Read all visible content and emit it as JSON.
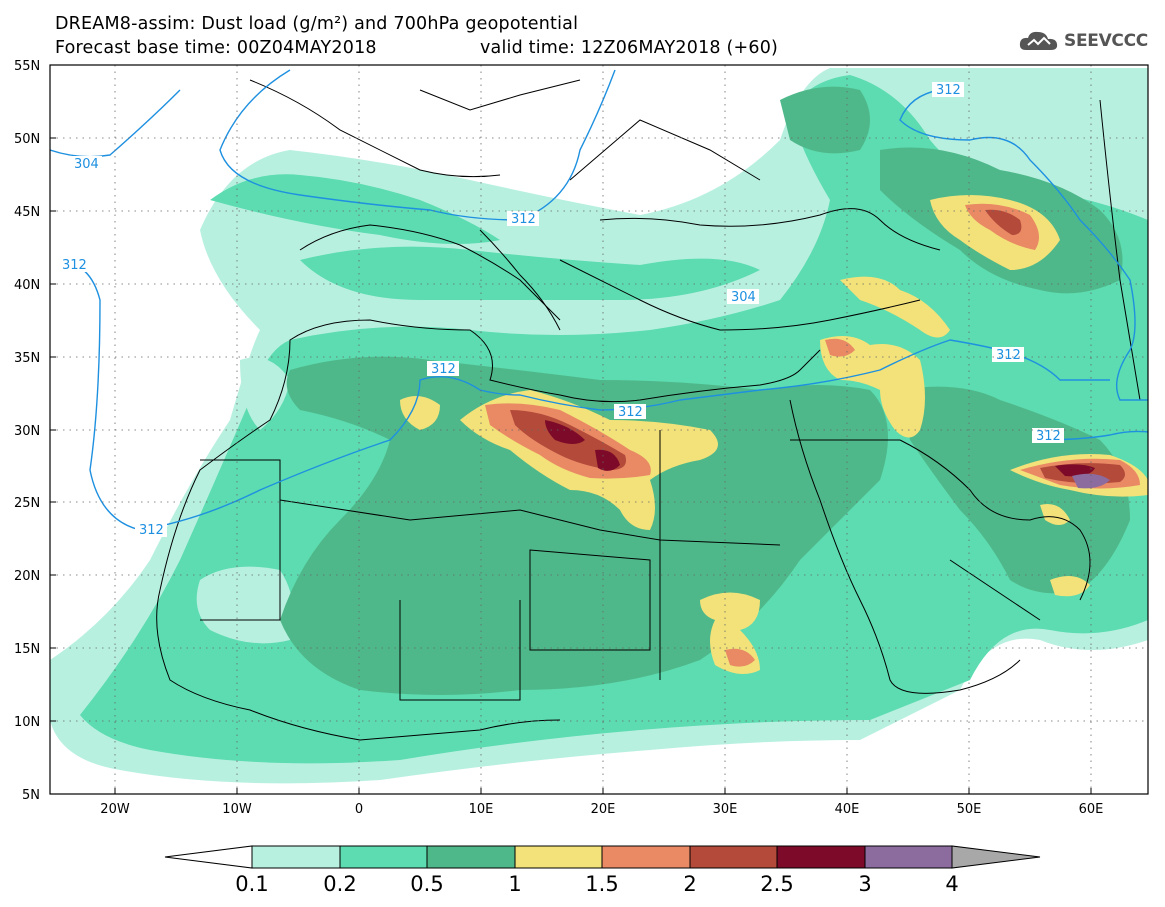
{
  "header": {
    "title_line1": "DREAM8-assim: Dust load (g/m²) and 700hPa geopotential",
    "title_line2_left": "Forecast base time: 00Z04MAY2018",
    "title_line2_right": "valid time: 12Z06MAY2018 (+60)"
  },
  "logo": {
    "text": "SEEVCCC",
    "icon": "cloud-icon"
  },
  "map": {
    "lon_range": [
      -25,
      65
    ],
    "lat_range": [
      5,
      55
    ],
    "lat_ticks": [
      "55N",
      "50N",
      "45N",
      "40N",
      "35N",
      "30N",
      "25N",
      "20N",
      "15N",
      "10N",
      "5N"
    ],
    "lon_ticks": [
      "20W",
      "10W",
      "0",
      "10E",
      "20E",
      "30E",
      "40E",
      "50E",
      "60E"
    ],
    "contour_labels": [
      "304",
      "312",
      "312",
      "312",
      "304",
      "312",
      "312",
      "312",
      "312",
      "312"
    ],
    "contour_color": "#1e90e0"
  },
  "colorbar": {
    "labels": [
      "0.1",
      "0.2",
      "0.5",
      "1",
      "1.5",
      "2",
      "2.5",
      "3",
      "4"
    ],
    "colors": [
      "#ffffff",
      "#b8f0e0",
      "#5cdcb0",
      "#4fb88a",
      "#f2e279",
      "#e98a64",
      "#b34a3a",
      "#7c0a28",
      "#8c6b9e",
      "#a8a8a8"
    ]
  }
}
